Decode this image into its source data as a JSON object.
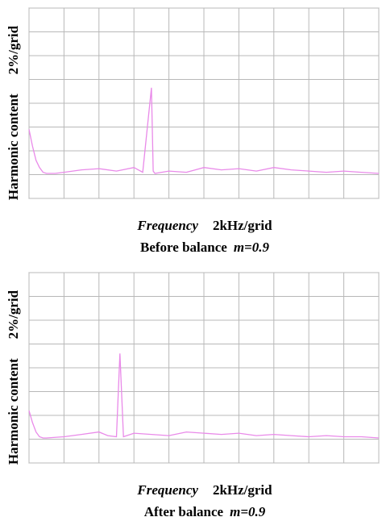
{
  "chart_data": [
    {
      "type": "line",
      "xlabel": "Frequency",
      "xlabel_unit": "2kHz/grid",
      "ylabel": "Harmonic content",
      "ylabel_unit": "2%/grid",
      "caption": "Before balance",
      "caption_math": "m=0.9",
      "color": "#e98ae9",
      "grid": true,
      "xlim": [
        0,
        20
      ],
      "ylim": [
        -2,
        14
      ],
      "xticks": [
        0,
        2,
        4,
        6,
        8,
        10,
        12,
        14,
        16,
        18,
        20
      ],
      "yticks": [
        -2,
        0,
        2,
        4,
        6,
        8,
        10,
        12,
        14
      ],
      "x": [
        0,
        0.2,
        0.4,
        0.6,
        0.8,
        1,
        1.5,
        2,
        3,
        4,
        5,
        6,
        6.5,
        7,
        7.1,
        7.2,
        8,
        9,
        10,
        11,
        12,
        13,
        14,
        15,
        16,
        17,
        18,
        19,
        20
      ],
      "values": [
        3.8,
        2.4,
        1.2,
        0.6,
        0.2,
        0.1,
        0.1,
        0.2,
        0.4,
        0.5,
        0.3,
        0.6,
        0.2,
        7.3,
        0.3,
        0.1,
        0.3,
        0.2,
        0.6,
        0.4,
        0.5,
        0.3,
        0.6,
        0.4,
        0.3,
        0.2,
        0.3,
        0.2,
        0.1
      ]
    },
    {
      "type": "line",
      "xlabel": "Frequency",
      "xlabel_unit": "2kHz/grid",
      "ylabel": "Harmonic content",
      "ylabel_unit": "2%/grid",
      "caption": "After balance",
      "caption_math": "m=0.9",
      "color": "#e98ae9",
      "grid": true,
      "xlim": [
        0,
        20
      ],
      "ylim": [
        -2,
        14
      ],
      "xticks": [
        0,
        2,
        4,
        6,
        8,
        10,
        12,
        14,
        16,
        18,
        20
      ],
      "yticks": [
        -2,
        0,
        2,
        4,
        6,
        8,
        10,
        12,
        14
      ],
      "x": [
        0,
        0.2,
        0.4,
        0.6,
        0.8,
        1,
        2,
        3,
        4,
        4.5,
        5,
        5.2,
        5.4,
        6,
        7,
        8,
        9,
        10,
        11,
        12,
        13,
        14,
        15,
        16,
        17,
        18,
        19,
        20
      ],
      "values": [
        2.4,
        1.4,
        0.6,
        0.2,
        0.1,
        0.1,
        0.2,
        0.4,
        0.6,
        0.3,
        0.2,
        7.2,
        0.2,
        0.5,
        0.4,
        0.3,
        0.6,
        0.5,
        0.4,
        0.5,
        0.3,
        0.4,
        0.3,
        0.2,
        0.3,
        0.2,
        0.2,
        0.1
      ]
    }
  ]
}
